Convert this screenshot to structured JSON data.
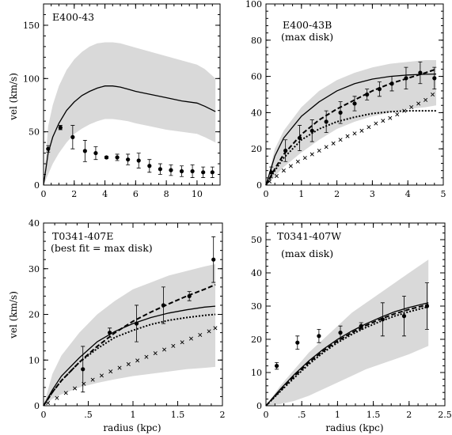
{
  "chart_data": [
    {
      "type": "line",
      "title": "E400-43",
      "subtitle": "",
      "xlabel": "",
      "ylabel": "vel (km/s)",
      "xlim": [
        0,
        11.5
      ],
      "ylim": [
        0,
        170
      ],
      "xticks": [
        0,
        2,
        4,
        6,
        8,
        10
      ],
      "yticks": [
        0,
        50,
        100,
        150
      ],
      "xtick_labels": [
        "0",
        "2",
        "4",
        "6",
        "8",
        "10"
      ],
      "ytick_labels": [
        "0",
        "50",
        "100",
        "150"
      ],
      "colors": {
        "band": "#d9d9d9",
        "line": "#000000"
      },
      "band": {
        "x": [
          0,
          0.3,
          0.6,
          1.0,
          1.5,
          2.0,
          2.5,
          3.0,
          3.5,
          4.0,
          4.5,
          5.0,
          5.5,
          6.0,
          7.0,
          8.0,
          9.0,
          10.0,
          10.5,
          11.2
        ],
        "lower": [
          0,
          10,
          20,
          30,
          40,
          48,
          53,
          57,
          60,
          62,
          62,
          61,
          60,
          58,
          55,
          52,
          50,
          48,
          45,
          40
        ],
        "upper": [
          0,
          55,
          75,
          93,
          108,
          118,
          125,
          130,
          133,
          134,
          134,
          133,
          131,
          129,
          125,
          121,
          117,
          113,
          109,
          100
        ]
      },
      "series": [
        {
          "style": "solid",
          "x": [
            0,
            0.3,
            0.6,
            1.0,
            1.5,
            2.0,
            2.5,
            3.0,
            3.5,
            4.0,
            4.5,
            5.0,
            5.5,
            6.0,
            7.0,
            8.0,
            9.0,
            10.0,
            10.5,
            11.2
          ],
          "y": [
            0,
            30,
            45,
            58,
            70,
            78,
            84,
            88,
            91,
            93,
            93,
            92,
            90,
            88,
            85,
            82,
            79,
            77,
            74,
            69
          ]
        }
      ],
      "points": {
        "x": [
          0.3,
          1.1,
          1.9,
          2.7,
          3.4,
          4.1,
          4.8,
          5.5,
          6.2,
          6.9,
          7.6,
          8.3,
          9.0,
          9.7,
          10.4,
          11.0
        ],
        "y": [
          34,
          54,
          45,
          32,
          30,
          26,
          26,
          24,
          23,
          18,
          15,
          14,
          13,
          13,
          12,
          12
        ],
        "err": [
          3,
          2,
          11,
          10,
          6,
          1,
          3,
          5,
          7,
          6,
          5,
          5,
          5,
          6,
          5,
          5
        ]
      }
    },
    {
      "type": "line",
      "title": "E400-43B",
      "subtitle": "(max disk)",
      "xlabel": "",
      "ylabel": "",
      "xlim": [
        0,
        5
      ],
      "ylim": [
        0,
        100
      ],
      "xticks": [
        0,
        1,
        2,
        3,
        4,
        5
      ],
      "yticks": [
        0,
        20,
        40,
        60,
        80,
        100
      ],
      "xtick_labels": [
        "0",
        "1",
        "2",
        "3",
        "4",
        "5"
      ],
      "ytick_labels": [
        "0",
        "20",
        "40",
        "60",
        "80",
        "100"
      ],
      "colors": {
        "band": "#d9d9d9",
        "line": "#000000"
      },
      "band": {
        "x": [
          0,
          0.25,
          0.5,
          1.0,
          1.5,
          2.0,
          2.5,
          3.0,
          3.5,
          4.0,
          4.5,
          4.8
        ],
        "lower": [
          0,
          5,
          10,
          18,
          25,
          31,
          35,
          38,
          40,
          42,
          43,
          44
        ],
        "upper": [
          0,
          20,
          30,
          43,
          52,
          58,
          62,
          65,
          67,
          68,
          69,
          69
        ]
      },
      "series": [
        {
          "style": "solid",
          "x": [
            0,
            0.25,
            0.5,
            1.0,
            1.5,
            2.0,
            2.5,
            3.0,
            3.5,
            4.0,
            4.5,
            4.8
          ],
          "y": [
            0,
            16,
            26,
            38,
            46,
            52,
            56,
            58.5,
            60,
            60.8,
            61.2,
            61.3
          ]
        },
        {
          "style": "dashed",
          "x": [
            0,
            0.25,
            0.5,
            1.0,
            1.5,
            2.0,
            2.5,
            3.0,
            3.5,
            4.0,
            4.5,
            4.8
          ],
          "y": [
            0,
            9,
            17,
            28,
            36,
            42,
            47,
            52,
            56,
            59,
            62,
            64
          ]
        },
        {
          "style": "dotted",
          "x": [
            0,
            0.25,
            0.5,
            1.0,
            1.5,
            2.0,
            2.5,
            3.0,
            3.5,
            4.0,
            4.5,
            4.8
          ],
          "y": [
            0,
            8,
            15,
            25,
            31,
            35,
            37.5,
            39.5,
            40.5,
            41,
            41,
            41
          ]
        },
        {
          "style": "cross",
          "x": [
            0.1,
            0.3,
            0.5,
            0.7,
            0.9,
            1.1,
            1.3,
            1.5,
            1.7,
            1.9,
            2.1,
            2.3,
            2.5,
            2.7,
            2.9,
            3.1,
            3.3,
            3.5,
            3.7,
            3.9,
            4.1,
            4.3,
            4.5,
            4.7
          ],
          "y": [
            2,
            5,
            8,
            10.5,
            13,
            15,
            17,
            19,
            21,
            23,
            25,
            27,
            28.5,
            30,
            32,
            34,
            35.5,
            37,
            39,
            41,
            43,
            45,
            47,
            50
          ]
        }
      ],
      "points": {
        "x": [
          0.15,
          0.55,
          0.95,
          1.3,
          1.7,
          2.1,
          2.5,
          2.85,
          3.2,
          3.55,
          3.95,
          4.35,
          4.75
        ],
        "y": [
          7,
          19,
          26,
          30,
          35,
          40,
          45,
          50,
          53,
          56,
          59,
          62,
          59
        ],
        "err": [
          3,
          6,
          7,
          6,
          6,
          6,
          4,
          3,
          4,
          4,
          6,
          6,
          6
        ]
      }
    },
    {
      "type": "line",
      "title": "T0341-407E",
      "subtitle": "(best fit = max disk)",
      "xlabel": "radius (kpc)",
      "ylabel": "vel (km/s)",
      "xlim": [
        0,
        2
      ],
      "ylim": [
        0,
        40
      ],
      "xticks": [
        0,
        0.5,
        1,
        1.5,
        2
      ],
      "yticks": [
        0,
        10,
        20,
        30,
        40
      ],
      "xtick_labels": [
        "0",
        ".5",
        "1",
        "1.5",
        "2"
      ],
      "ytick_labels": [
        "0",
        "10",
        "20",
        "30",
        "40"
      ],
      "colors": {
        "band": "#d9d9d9",
        "line": "#000000"
      },
      "band": {
        "x": [
          0,
          0.1,
          0.2,
          0.4,
          0.6,
          0.8,
          1.0,
          1.2,
          1.4,
          1.6,
          1.8,
          1.92
        ],
        "lower": [
          0,
          1.5,
          2.5,
          4,
          5,
          5.8,
          6.5,
          7,
          7.5,
          8,
          8.3,
          8.5
        ],
        "upper": [
          0,
          7,
          11,
          16,
          20,
          23,
          25.5,
          27,
          28.5,
          29.5,
          30.5,
          31
        ]
      },
      "series": [
        {
          "style": "solid",
          "x": [
            0,
            0.1,
            0.2,
            0.4,
            0.6,
            0.8,
            1.0,
            1.2,
            1.4,
            1.6,
            1.8,
            1.92
          ],
          "y": [
            0,
            3.5,
            6.5,
            10.5,
            14,
            16.3,
            18,
            19.3,
            20.3,
            21,
            21.6,
            21.8
          ]
        },
        {
          "style": "dashed",
          "x": [
            0,
            0.1,
            0.2,
            0.4,
            0.6,
            0.8,
            1.0,
            1.2,
            1.4,
            1.6,
            1.8,
            1.92
          ],
          "y": [
            0,
            3,
            5.5,
            9.5,
            13,
            16,
            18.5,
            20.5,
            22.3,
            24,
            25.5,
            26.5
          ]
        },
        {
          "style": "dotted",
          "x": [
            0,
            0.1,
            0.2,
            0.4,
            0.6,
            0.8,
            1.0,
            1.2,
            1.4,
            1.6,
            1.8,
            1.92
          ],
          "y": [
            0,
            3,
            5.5,
            9.5,
            12.5,
            15,
            16.5,
            17.8,
            18.7,
            19.3,
            19.8,
            20
          ]
        },
        {
          "style": "cross",
          "x": [
            0.05,
            0.15,
            0.25,
            0.35,
            0.45,
            0.55,
            0.65,
            0.75,
            0.85,
            0.95,
            1.05,
            1.15,
            1.25,
            1.35,
            1.45,
            1.55,
            1.65,
            1.75,
            1.85,
            1.92
          ],
          "y": [
            0.6,
            1.7,
            2.8,
            3.8,
            4.8,
            5.7,
            6.6,
            7.5,
            8.3,
            9.1,
            9.9,
            10.7,
            11.5,
            12.3,
            13.1,
            13.9,
            14.7,
            15.5,
            16.3,
            17
          ]
        }
      ],
      "points": {
        "x": [
          0.44,
          0.74,
          1.04,
          1.34,
          1.63,
          1.9
        ],
        "y": [
          8,
          16,
          18,
          22,
          24,
          32
        ],
        "err": [
          5,
          1,
          4,
          4,
          1,
          5
        ]
      }
    },
    {
      "type": "line",
      "title": "T0341-407W",
      "subtitle": "(max disk)",
      "xlabel": "radius (kpc)",
      "ylabel": "",
      "xlim": [
        0,
        2.5
      ],
      "ylim": [
        0,
        55
      ],
      "xticks": [
        0,
        0.5,
        1,
        1.5,
        2,
        2.5
      ],
      "yticks": [
        0,
        10,
        20,
        30,
        40,
        50
      ],
      "xtick_labels": [
        "0",
        ".5",
        "1",
        "1.5",
        "2",
        "2.5"
      ],
      "ytick_labels": [
        "0",
        "10",
        "20",
        "30",
        "40",
        "50"
      ],
      "colors": {
        "band": "#d9d9d9",
        "line": "#000000"
      },
      "band": {
        "x": [
          0,
          0.2,
          0.4,
          0.6,
          0.8,
          1.0,
          1.2,
          1.4,
          1.6,
          1.8,
          2.0,
          2.27
        ],
        "lower": [
          0,
          0.5,
          1.5,
          3,
          5,
          7,
          9,
          11,
          12.5,
          14,
          15.5,
          18
        ],
        "upper": [
          0,
          6,
          11,
          16,
          20,
          24,
          28,
          31,
          34,
          37,
          40,
          44
        ]
      },
      "series": [
        {
          "style": "solid",
          "x": [
            0,
            0.2,
            0.4,
            0.6,
            0.8,
            1.0,
            1.2,
            1.4,
            1.6,
            1.8,
            2.0,
            2.27
          ],
          "y": [
            0,
            5,
            9.5,
            13.5,
            17,
            20,
            22.5,
            24.7,
            26.6,
            28.3,
            29.6,
            31
          ]
        },
        {
          "style": "dashed",
          "x": [
            0,
            0.2,
            0.4,
            0.6,
            0.8,
            1.0,
            1.2,
            1.4,
            1.6,
            1.8,
            2.0,
            2.27
          ],
          "y": [
            0,
            4.6,
            9,
            13,
            16.5,
            19.5,
            22,
            24.2,
            26.1,
            27.7,
            29,
            30.5
          ]
        },
        {
          "style": "dotted",
          "x": [
            0,
            0.2,
            0.4,
            0.6,
            0.8,
            1.0,
            1.2,
            1.4,
            1.6,
            1.8,
            2.0,
            2.27
          ],
          "y": [
            0,
            4.3,
            8.5,
            12.5,
            16,
            19,
            21.5,
            23.6,
            25.4,
            27,
            28.3,
            29.8
          ]
        }
      ],
      "points": {
        "x": [
          0.15,
          0.44,
          0.74,
          1.04,
          1.33,
          1.63,
          1.93,
          2.25
        ],
        "y": [
          12,
          19,
          21,
          22,
          24,
          26,
          27,
          30
        ],
        "err": [
          1,
          2,
          2,
          2,
          1,
          5,
          6,
          7
        ]
      }
    }
  ]
}
